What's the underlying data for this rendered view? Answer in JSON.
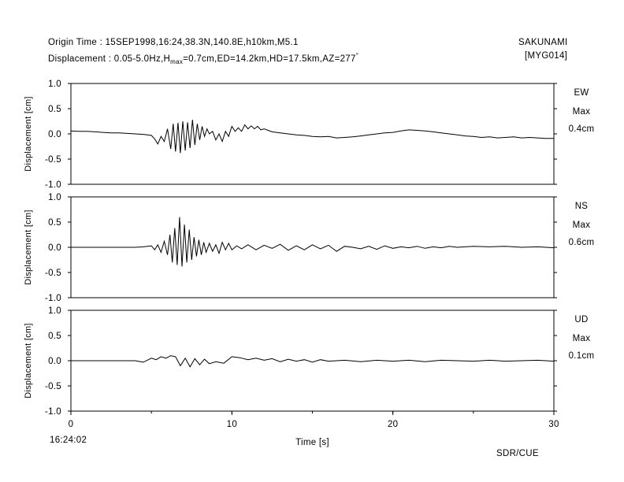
{
  "header": {
    "origin_time": "Origin Time : 15SEP1998,16:24,38.3N,140.8E,h10km,M5.1",
    "disp_prefix": "Displacement : 0.05-5.0Hz,H",
    "disp_sub": "max",
    "disp_mid": "=0.7cm,ED=14.2km,HD=17.5km,AZ=277",
    "disp_sup": "°",
    "station_name": "SAKUNAMI",
    "station_code": "[MYG014]"
  },
  "footer": {
    "start_time": "16:24:02",
    "credit": "SDR/CUE"
  },
  "chart_data": [
    {
      "type": "line",
      "component": "EW",
      "max_label": "Max",
      "max_value": "0.4cm",
      "ylabel": "Displacement [cm]",
      "xlabel": "",
      "ylim": [
        -1.0,
        1.0
      ],
      "yticks": [
        "1.0",
        "0.5",
        "0.0",
        "-0.5",
        "-1.0"
      ],
      "x": [
        0,
        0.5,
        1,
        1.5,
        2,
        2.5,
        3,
        3.5,
        4,
        4.5,
        5,
        5.2,
        5.4,
        5.6,
        5.8,
        6.0,
        6.2,
        6.35,
        6.5,
        6.65,
        6.8,
        6.95,
        7.1,
        7.25,
        7.4,
        7.55,
        7.7,
        7.85,
        8.0,
        8.15,
        8.3,
        8.45,
        8.6,
        8.8,
        9.0,
        9.2,
        9.4,
        9.6,
        9.8,
        10.0,
        10.2,
        10.4,
        10.6,
        10.8,
        11.0,
        11.2,
        11.4,
        11.6,
        11.8,
        12.0,
        12.5,
        13,
        13.5,
        14,
        14.5,
        15,
        15.5,
        16,
        16.5,
        17,
        17.5,
        18,
        18.5,
        19,
        19.5,
        20,
        20.5,
        21,
        21.5,
        22,
        22.5,
        23,
        23.5,
        24,
        24.5,
        25,
        25.5,
        26,
        26.5,
        27,
        27.5,
        28,
        28.5,
        29,
        29.5,
        30
      ],
      "values": [
        0.06,
        0.05,
        0.05,
        0.04,
        0.03,
        0.02,
        0.02,
        0.01,
        0.0,
        -0.01,
        -0.03,
        -0.1,
        -0.2,
        -0.05,
        -0.15,
        0.1,
        -0.3,
        0.2,
        -0.35,
        0.22,
        -0.38,
        0.25,
        -0.33,
        0.23,
        -0.28,
        0.28,
        -0.22,
        0.2,
        -0.12,
        0.15,
        -0.05,
        0.1,
        0.0,
        0.05,
        -0.12,
        0.0,
        -0.15,
        0.05,
        -0.05,
        0.15,
        0.05,
        0.12,
        0.05,
        0.18,
        0.1,
        0.16,
        0.1,
        0.15,
        0.08,
        0.1,
        0.04,
        0.02,
        0.0,
        -0.02,
        -0.03,
        -0.05,
        -0.06,
        -0.05,
        -0.08,
        -0.07,
        -0.06,
        -0.04,
        -0.02,
        0.0,
        0.02,
        0.03,
        0.06,
        0.08,
        0.07,
        0.06,
        0.04,
        0.02,
        0.0,
        -0.02,
        -0.04,
        -0.05,
        -0.07,
        -0.06,
        -0.08,
        -0.07,
        -0.06,
        -0.08,
        -0.07,
        -0.08,
        -0.09,
        -0.09
      ]
    },
    {
      "type": "line",
      "component": "NS",
      "max_label": "Max",
      "max_value": "0.6cm",
      "ylabel": "Displacement [cm]",
      "xlabel": "",
      "ylim": [
        -1.0,
        1.0
      ],
      "yticks": [
        "1.0",
        "0.5",
        "0.0",
        "-0.5",
        "-1.0"
      ],
      "x": [
        0,
        1,
        2,
        3,
        4,
        4.5,
        5.0,
        5.2,
        5.4,
        5.6,
        5.8,
        6.0,
        6.15,
        6.3,
        6.45,
        6.6,
        6.75,
        6.9,
        7.05,
        7.2,
        7.35,
        7.5,
        7.65,
        7.8,
        7.95,
        8.1,
        8.25,
        8.4,
        8.6,
        8.8,
        9.0,
        9.2,
        9.4,
        9.6,
        9.8,
        10.0,
        10.3,
        10.6,
        11.0,
        11.5,
        12,
        12.5,
        13,
        13.5,
        14,
        14.5,
        15,
        15.5,
        16,
        16.5,
        17,
        17.5,
        18,
        18.5,
        19,
        19.5,
        20,
        20.5,
        21,
        21.5,
        22,
        22.5,
        23,
        23.5,
        24,
        25,
        26,
        27,
        28,
        29,
        30
      ],
      "values": [
        0.0,
        0.0,
        0.0,
        0.0,
        0.0,
        0.01,
        0.03,
        -0.05,
        0.05,
        -0.1,
        0.12,
        -0.15,
        0.25,
        -0.3,
        0.38,
        -0.35,
        0.6,
        -0.38,
        0.45,
        -0.3,
        0.35,
        -0.25,
        0.2,
        -0.18,
        0.15,
        -0.15,
        0.1,
        -0.1,
        0.08,
        -0.08,
        0.05,
        -0.12,
        0.1,
        -0.05,
        0.08,
        -0.05,
        0.03,
        -0.03,
        0.05,
        -0.05,
        0.04,
        -0.02,
        0.06,
        -0.06,
        0.03,
        -0.05,
        0.05,
        -0.03,
        0.04,
        -0.08,
        0.02,
        0.0,
        -0.03,
        0.02,
        -0.04,
        0.03,
        -0.02,
        0.01,
        -0.01,
        0.02,
        -0.02,
        0.01,
        -0.01,
        0.02,
        0.0,
        0.02,
        0.01,
        0.02,
        0.0,
        0.01,
        -0.01
      ]
    },
    {
      "type": "line",
      "component": "UD",
      "max_label": "Max",
      "max_value": "0.1cm",
      "ylabel": "Displacement [cm]",
      "xlabel": "Time [s]",
      "ylim": [
        -1.0,
        1.0
      ],
      "yticks": [
        "1.0",
        "0.5",
        "0.0",
        "-0.5",
        "-1.0"
      ],
      "xticks": [
        "0",
        "10",
        "20",
        "30"
      ],
      "xlim": [
        0,
        30
      ],
      "x": [
        0,
        1,
        2,
        3,
        4,
        4.5,
        5.0,
        5.3,
        5.6,
        5.9,
        6.2,
        6.5,
        6.8,
        7.1,
        7.4,
        7.7,
        8.0,
        8.3,
        8.6,
        9.0,
        9.5,
        10.0,
        10.5,
        11.0,
        11.5,
        12,
        12.5,
        13,
        13.5,
        14,
        14.5,
        15,
        15.5,
        16,
        17,
        18,
        19,
        20,
        21,
        22,
        23,
        24,
        25,
        26,
        27,
        28,
        29,
        30
      ],
      "values": [
        0.0,
        0.0,
        0.0,
        0.0,
        0.0,
        -0.03,
        0.05,
        0.02,
        0.08,
        0.05,
        0.1,
        0.08,
        -0.1,
        0.05,
        -0.12,
        0.04,
        -0.08,
        0.03,
        -0.06,
        -0.02,
        -0.05,
        0.08,
        0.06,
        0.02,
        0.05,
        0.01,
        0.04,
        -0.02,
        0.03,
        -0.01,
        0.02,
        -0.03,
        0.02,
        -0.01,
        0.01,
        -0.02,
        0.01,
        -0.01,
        0.01,
        -0.02,
        0.01,
        0.0,
        -0.01,
        0.01,
        -0.01,
        0.0,
        0.01,
        -0.01
      ]
    }
  ]
}
